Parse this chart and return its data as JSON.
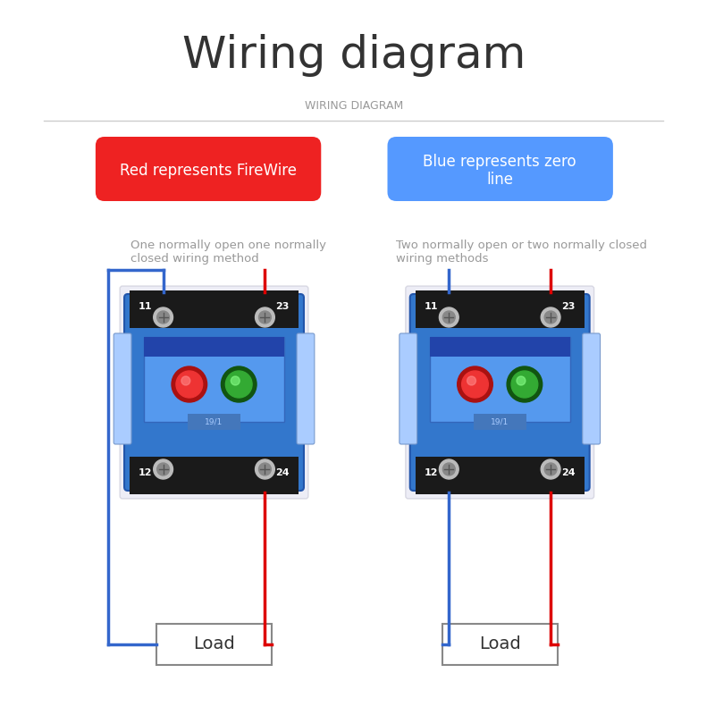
{
  "title": "Wiring diagram",
  "subtitle": "WIRING DIAGRAM",
  "bg_color": "#ffffff",
  "title_fontsize": 36,
  "subtitle_fontsize": 9,
  "red_label": "Red represents FireWire",
  "blue_label": "Blue represents zero\nline",
  "left_desc": "One normally open one normally\nclosed wiring method",
  "right_desc": "Two normally open or two normally closed\nwiring methods",
  "load_label": "Load",
  "red_pill_color": "#ee2222",
  "blue_pill_color": "#5599ff",
  "line_color_red": "#dd0000",
  "line_color_blue": "#3366cc",
  "separator_color": "#cccccc",
  "text_color_dark": "#333333",
  "text_color_gray": "#999999",
  "load_box_color": "#ffffff",
  "load_box_border": "#888888"
}
